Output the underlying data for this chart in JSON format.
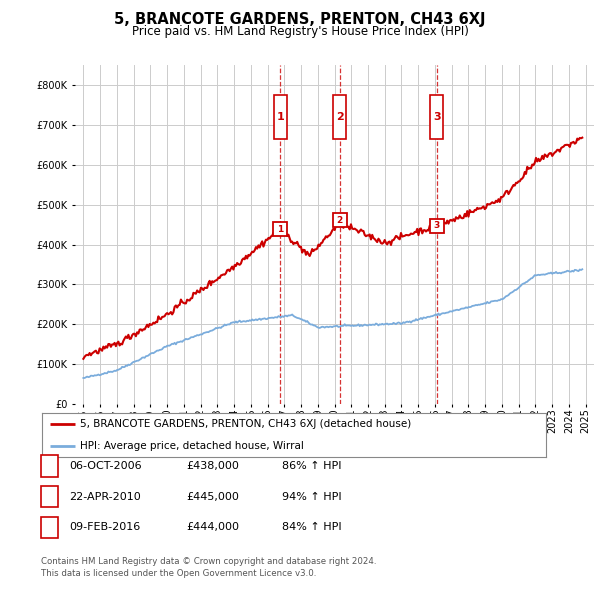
{
  "title": "5, BRANCOTE GARDENS, PRENTON, CH43 6XJ",
  "subtitle": "Price paid vs. HM Land Registry's House Price Index (HPI)",
  "footer1": "Contains HM Land Registry data © Crown copyright and database right 2024.",
  "footer2": "This data is licensed under the Open Government Licence v3.0.",
  "legend_line1": "5, BRANCOTE GARDENS, PRENTON, CH43 6XJ (detached house)",
  "legend_line2": "HPI: Average price, detached house, Wirral",
  "transactions": [
    {
      "num": 1,
      "date": "06-OCT-2006",
      "price": 438000,
      "pct": "86%",
      "dir": "↑"
    },
    {
      "num": 2,
      "date": "22-APR-2010",
      "price": 445000,
      "pct": "94%",
      "dir": "↑"
    },
    {
      "num": 3,
      "date": "09-FEB-2016",
      "price": 444000,
      "pct": "84%",
      "dir": "↑"
    }
  ],
  "transaction_years": [
    2006.77,
    2010.31,
    2016.11
  ],
  "ylim": [
    0,
    850000
  ],
  "yticks": [
    0,
    100000,
    200000,
    300000,
    400000,
    500000,
    600000,
    700000,
    800000
  ],
  "red_color": "#cc0000",
  "blue_color": "#7aacdc",
  "vline_color": "#cc0000",
  "grid_color": "#cccccc",
  "bg_color": "#ffffff",
  "xlim_start": 1994.5,
  "xlim_end": 2025.5
}
